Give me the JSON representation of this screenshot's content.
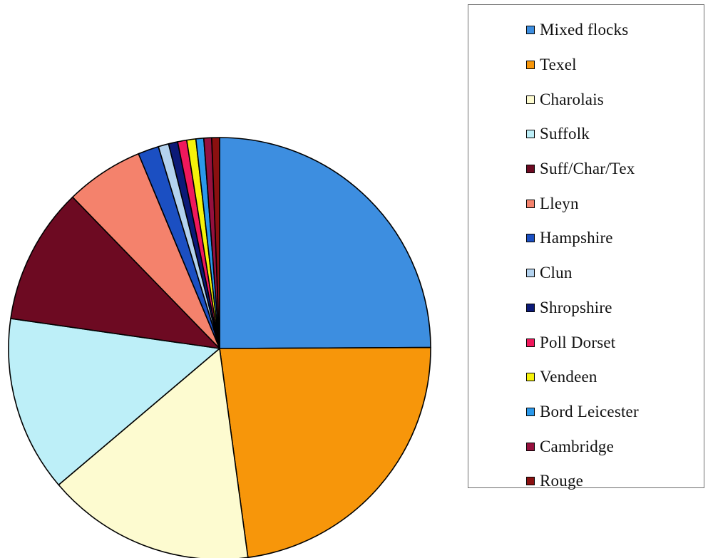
{
  "chart_data": {
    "type": "pie",
    "title": "",
    "start_angle_deg": 0,
    "direction": "clockwise",
    "legend_position": "right",
    "slices": [
      {
        "label": "Mixed flocks",
        "value": 25.0,
        "color": "#3d8ee0"
      },
      {
        "label": "Texel",
        "value": 23.0,
        "color": "#f7960a"
      },
      {
        "label": "Charolais",
        "value": 16.0,
        "color": "#fdfbd0"
      },
      {
        "label": "Suffolk",
        "value": 13.5,
        "color": "#bdeff8"
      },
      {
        "label": "Suff/Char/Tex",
        "value": 10.5,
        "color": "#6d0a22"
      },
      {
        "label": "Lleyn",
        "value": 6.0,
        "color": "#f4826c"
      },
      {
        "label": "Hampshire",
        "value": 1.6,
        "color": "#1b4fc2"
      },
      {
        "label": "Clun",
        "value": 0.8,
        "color": "#b3d2ee"
      },
      {
        "label": "Shropshire",
        "value": 0.7,
        "color": "#0c1a78"
      },
      {
        "label": "Poll Dorset",
        "value": 0.7,
        "color": "#f0185c"
      },
      {
        "label": "Vendeen",
        "value": 0.7,
        "color": "#f6f20a"
      },
      {
        "label": "Bord Leicester",
        "value": 0.6,
        "color": "#2a98ea"
      },
      {
        "label": "Cambridge",
        "value": 0.6,
        "color": "#96103e"
      },
      {
        "label": "Rouge",
        "value": 0.6,
        "color": "#8a1010"
      }
    ]
  }
}
